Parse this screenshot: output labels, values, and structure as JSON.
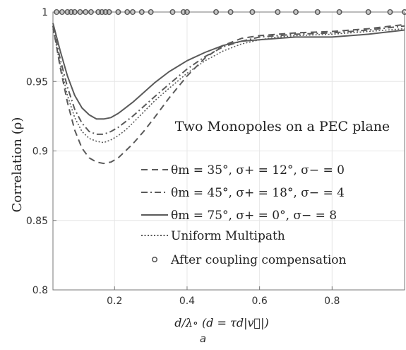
{
  "caption": "a",
  "chart_data": {
    "type": "line",
    "annotation": "Two Monopoles on a PEC plane",
    "xlabel": "d/λ∘ (d = τd|v⃗|)",
    "ylabel": "Correlation (ρ)",
    "xlim": [
      0.03,
      1.0
    ],
    "ylim": [
      0.8,
      1.0
    ],
    "xticks": [
      "0.2",
      "0.4",
      "0.6",
      "0.8"
    ],
    "xtick_values": [
      0.2,
      0.4,
      0.6,
      0.8
    ],
    "yticks": [
      "0.8",
      "0.85",
      "0.9",
      "0.95",
      "1"
    ],
    "ytick_values": [
      0.8,
      0.85,
      0.9,
      0.95,
      1.0
    ],
    "grid": true,
    "legend_position": "bottom-right",
    "colors": {
      "line": "#5a5a5a",
      "grid": "#e6e6e6",
      "axis": "#777777"
    },
    "series": [
      {
        "name": "θm = 35°, σ+ = 12°, σ− = 0",
        "style": "dashed",
        "x": [
          0.03,
          0.05,
          0.07,
          0.09,
          0.11,
          0.13,
          0.15,
          0.17,
          0.19,
          0.21,
          0.23,
          0.25,
          0.28,
          0.31,
          0.35,
          0.4,
          0.45,
          0.5,
          0.55,
          0.6,
          0.65,
          0.7,
          0.8,
          0.9,
          1.0
        ],
        "y": [
          0.99,
          0.96,
          0.935,
          0.915,
          0.902,
          0.895,
          0.892,
          0.891,
          0.892,
          0.895,
          0.9,
          0.905,
          0.914,
          0.924,
          0.938,
          0.954,
          0.967,
          0.976,
          0.981,
          0.983,
          0.984,
          0.985,
          0.986,
          0.988,
          0.991
        ]
      },
      {
        "name": "θm = 45°, σ+ = 18°, σ− = 4",
        "style": "dashdot",
        "x": [
          0.03,
          0.05,
          0.07,
          0.09,
          0.11,
          0.13,
          0.15,
          0.17,
          0.19,
          0.21,
          0.23,
          0.25,
          0.28,
          0.31,
          0.35,
          0.4,
          0.45,
          0.5,
          0.55,
          0.6,
          0.65,
          0.7,
          0.8,
          0.9,
          1.0
        ],
        "y": [
          0.99,
          0.966,
          0.946,
          0.93,
          0.92,
          0.914,
          0.912,
          0.912,
          0.914,
          0.917,
          0.921,
          0.925,
          0.932,
          0.939,
          0.948,
          0.959,
          0.968,
          0.975,
          0.979,
          0.982,
          0.983,
          0.984,
          0.985,
          0.987,
          0.99
        ]
      },
      {
        "name": "θm = 75°, σ+ = 0°, σ− = 8",
        "style": "solid",
        "x": [
          0.03,
          0.05,
          0.07,
          0.09,
          0.11,
          0.13,
          0.15,
          0.17,
          0.19,
          0.21,
          0.23,
          0.25,
          0.28,
          0.31,
          0.35,
          0.4,
          0.45,
          0.5,
          0.55,
          0.6,
          0.65,
          0.7,
          0.8,
          0.9,
          1.0
        ],
        "y": [
          0.992,
          0.972,
          0.954,
          0.94,
          0.931,
          0.926,
          0.923,
          0.923,
          0.924,
          0.927,
          0.931,
          0.935,
          0.942,
          0.949,
          0.957,
          0.965,
          0.971,
          0.976,
          0.979,
          0.98,
          0.981,
          0.982,
          0.982,
          0.984,
          0.987
        ]
      },
      {
        "name": "Uniform Multipath",
        "style": "dotted",
        "x": [
          0.03,
          0.05,
          0.07,
          0.09,
          0.11,
          0.13,
          0.15,
          0.17,
          0.19,
          0.21,
          0.23,
          0.25,
          0.28,
          0.31,
          0.35,
          0.4,
          0.45,
          0.5,
          0.55,
          0.6,
          0.65,
          0.7,
          0.8,
          0.9,
          1.0
        ],
        "y": [
          0.988,
          0.962,
          0.94,
          0.924,
          0.914,
          0.909,
          0.907,
          0.906,
          0.908,
          0.911,
          0.915,
          0.92,
          0.928,
          0.936,
          0.945,
          0.956,
          0.965,
          0.972,
          0.977,
          0.98,
          0.982,
          0.983,
          0.984,
          0.986,
          0.988
        ]
      },
      {
        "name": "After coupling compensation",
        "style": "markers",
        "x": [
          0.04,
          0.055,
          0.07,
          0.08,
          0.09,
          0.105,
          0.12,
          0.135,
          0.155,
          0.165,
          0.175,
          0.185,
          0.21,
          0.235,
          0.25,
          0.275,
          0.3,
          0.36,
          0.39,
          0.4,
          0.48,
          0.52,
          0.58,
          0.65,
          0.7,
          0.76,
          0.82,
          0.9,
          0.96,
          1.0
        ],
        "y": [
          1,
          1,
          1,
          1,
          1,
          1,
          1,
          1,
          1,
          1,
          1,
          1,
          1,
          1,
          1,
          1,
          1,
          1,
          1,
          1,
          1,
          1,
          1,
          1,
          1,
          1,
          1,
          1,
          1,
          1
        ]
      }
    ]
  }
}
